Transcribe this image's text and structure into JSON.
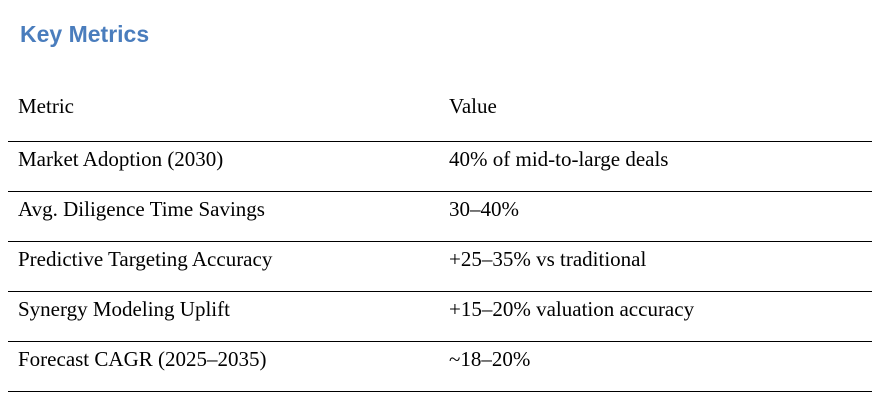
{
  "page": {
    "heading": "Key Metrics",
    "heading_color": "#4A7DBD",
    "background_color": "#FFFFFF",
    "border_color": "#000000"
  },
  "table": {
    "columns": [
      "Metric",
      "Value"
    ],
    "rows": [
      {
        "metric": "Market Adoption (2030)",
        "value": "40% of mid-to-large deals"
      },
      {
        "metric": "Avg. Diligence Time Savings",
        "value": "30–40%"
      },
      {
        "metric": "Predictive Targeting Accuracy",
        "value": "+25–35% vs traditional"
      },
      {
        "metric": "Synergy Modeling Uplift",
        "value": "+15–20% valuation accuracy"
      },
      {
        "metric": "Forecast CAGR (2025–2035)",
        "value": "~18–20%"
      }
    ]
  }
}
